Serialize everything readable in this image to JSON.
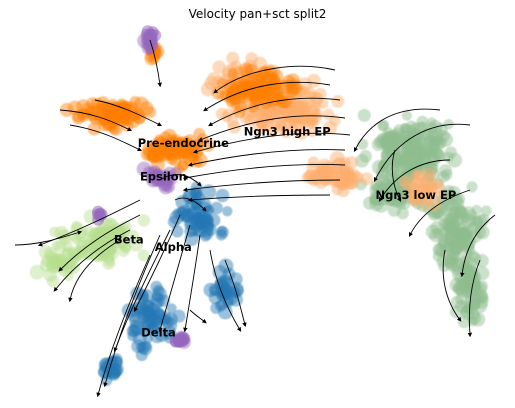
{
  "chart_data": {
    "type": "scatter",
    "title": "Velocity pan+sct split2",
    "xlabel": "",
    "ylabel": "",
    "axes_visible": false,
    "grid": false,
    "legend": "cluster labels drawn on data",
    "overlay": "velocity streamlines with arrowheads",
    "clusters": [
      {
        "name": "Ngn3 low EP",
        "color": "#8fbc8f",
        "x": 0.82,
        "y": 0.55
      },
      {
        "name": "Ngn3 high EP",
        "color": "#fdae6b",
        "x": 0.56,
        "y": 0.72
      },
      {
        "name": "Pre-endocrine",
        "color": "#ff7f0e",
        "x": 0.35,
        "y": 0.69
      },
      {
        "name": "Epsilon",
        "color": "#9467bd",
        "x": 0.31,
        "y": 0.6
      },
      {
        "name": "Beta",
        "color": "#b5de8f",
        "x": 0.24,
        "y": 0.43
      },
      {
        "name": "Alpha",
        "color": "#1f77b4",
        "x": 0.33,
        "y": 0.41
      },
      {
        "name": "Delta",
        "color": "#1f77b4",
        "x": 0.3,
        "y": 0.18
      }
    ]
  }
}
